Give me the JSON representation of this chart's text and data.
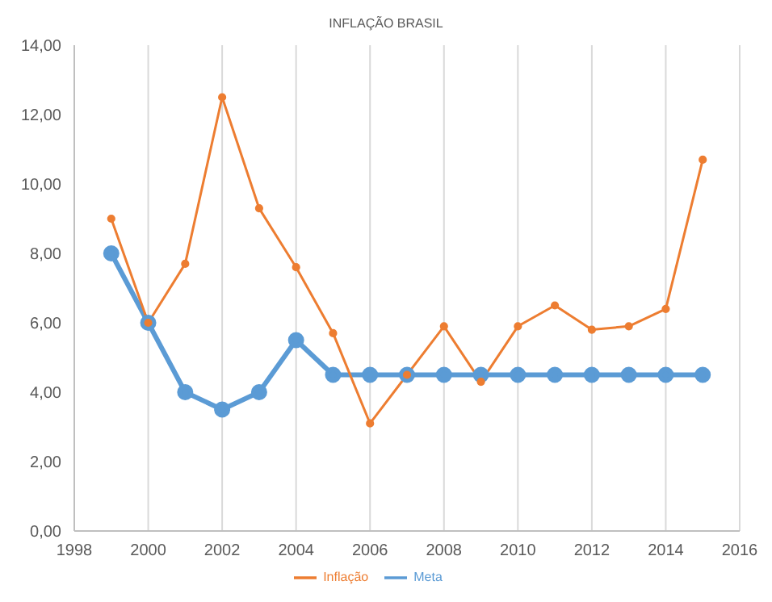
{
  "chart_data": {
    "type": "line",
    "title": "INFLAÇÃO BRASIL",
    "x": [
      1999,
      2000,
      2001,
      2002,
      2003,
      2004,
      2005,
      2006,
      2007,
      2008,
      2009,
      2010,
      2011,
      2012,
      2013,
      2014,
      2015
    ],
    "series": [
      {
        "name": "Meta",
        "color": "#5b9bd5",
        "values": [
          8.0,
          6.0,
          4.0,
          3.5,
          4.0,
          5.5,
          4.5,
          4.5,
          4.5,
          4.5,
          4.5,
          4.5,
          4.5,
          4.5,
          4.5,
          4.5,
          4.5
        ]
      },
      {
        "name": "Inflação",
        "color": "#ed7d31",
        "values": [
          9.0,
          6.0,
          7.7,
          12.5,
          9.3,
          7.6,
          5.7,
          3.1,
          4.5,
          5.9,
          4.3,
          5.9,
          6.5,
          5.8,
          5.9,
          6.4,
          10.7
        ]
      }
    ],
    "xlim": [
      1998,
      2016
    ],
    "xticks": [
      1998,
      2000,
      2002,
      2004,
      2006,
      2008,
      2010,
      2012,
      2014,
      2016
    ],
    "ylim": [
      0,
      14
    ],
    "yticks": [
      {
        "value": 0,
        "label": "0,00"
      },
      {
        "value": 2,
        "label": "2,00"
      },
      {
        "value": 4,
        "label": "4,00"
      },
      {
        "value": 6,
        "label": "6,00"
      },
      {
        "value": 8,
        "label": "8,00"
      },
      {
        "value": 10,
        "label": "10,00"
      },
      {
        "value": 12,
        "label": "12,00"
      },
      {
        "value": 14,
        "label": "14,00"
      }
    ],
    "grid": "x",
    "legend": "bottom",
    "marker": "circle",
    "line_style": "solid"
  }
}
